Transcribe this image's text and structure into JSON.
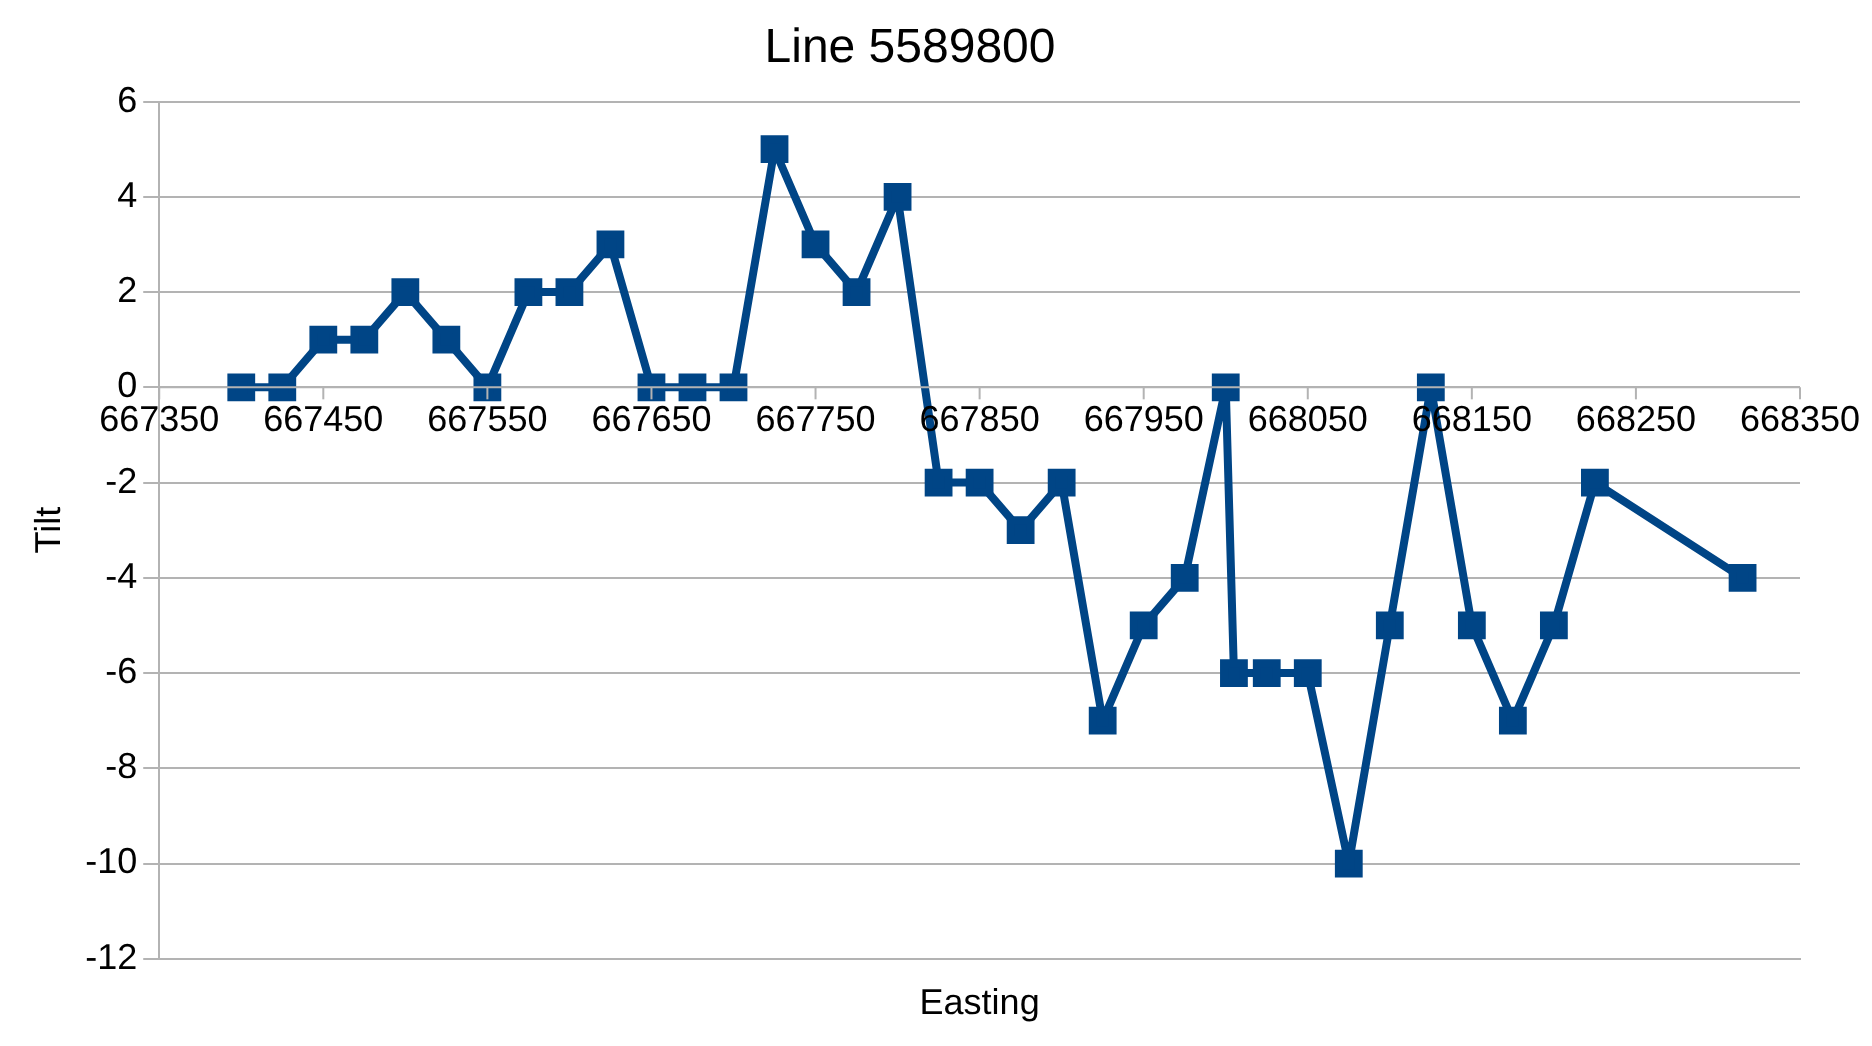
{
  "chart_data": {
    "type": "line",
    "title": "Line 5589800",
    "xlabel": "Easting",
    "ylabel": "Tilt",
    "x": [
      667400,
      667425,
      667450,
      667475,
      667500,
      667525,
      667550,
      667575,
      667600,
      667625,
      667650,
      667675,
      667700,
      667725,
      667750,
      667775,
      667800,
      667825,
      667850,
      667875,
      667900,
      667925,
      667950,
      667975,
      668000,
      668005,
      668025,
      668050,
      668075,
      668100,
      668125,
      668150,
      668175,
      668200,
      668225,
      668315
    ],
    "series": [
      {
        "color": "#004586",
        "values": [
          0,
          0,
          1,
          1,
          2,
          1,
          0,
          2,
          2,
          3,
          0,
          0,
          0,
          5,
          3,
          2,
          4,
          -2,
          -2,
          -3,
          -2,
          -7,
          -5,
          -4,
          0,
          -6,
          -6,
          -6,
          -10,
          -5,
          0,
          -5,
          -7,
          -5,
          -2,
          -4
        ]
      }
    ],
    "xlim": [
      667350,
      668350
    ],
    "xticks": [
      667350,
      667450,
      667550,
      667650,
      667750,
      667850,
      667950,
      668050,
      668150,
      668250,
      668350
    ],
    "ylim": [
      -12,
      6
    ],
    "yticks": [
      -12,
      -10,
      -8,
      -6,
      -4,
      -2,
      0,
      2,
      4,
      6
    ],
    "grid": "y",
    "legend": false,
    "marker": "square",
    "line_style": "solid"
  }
}
